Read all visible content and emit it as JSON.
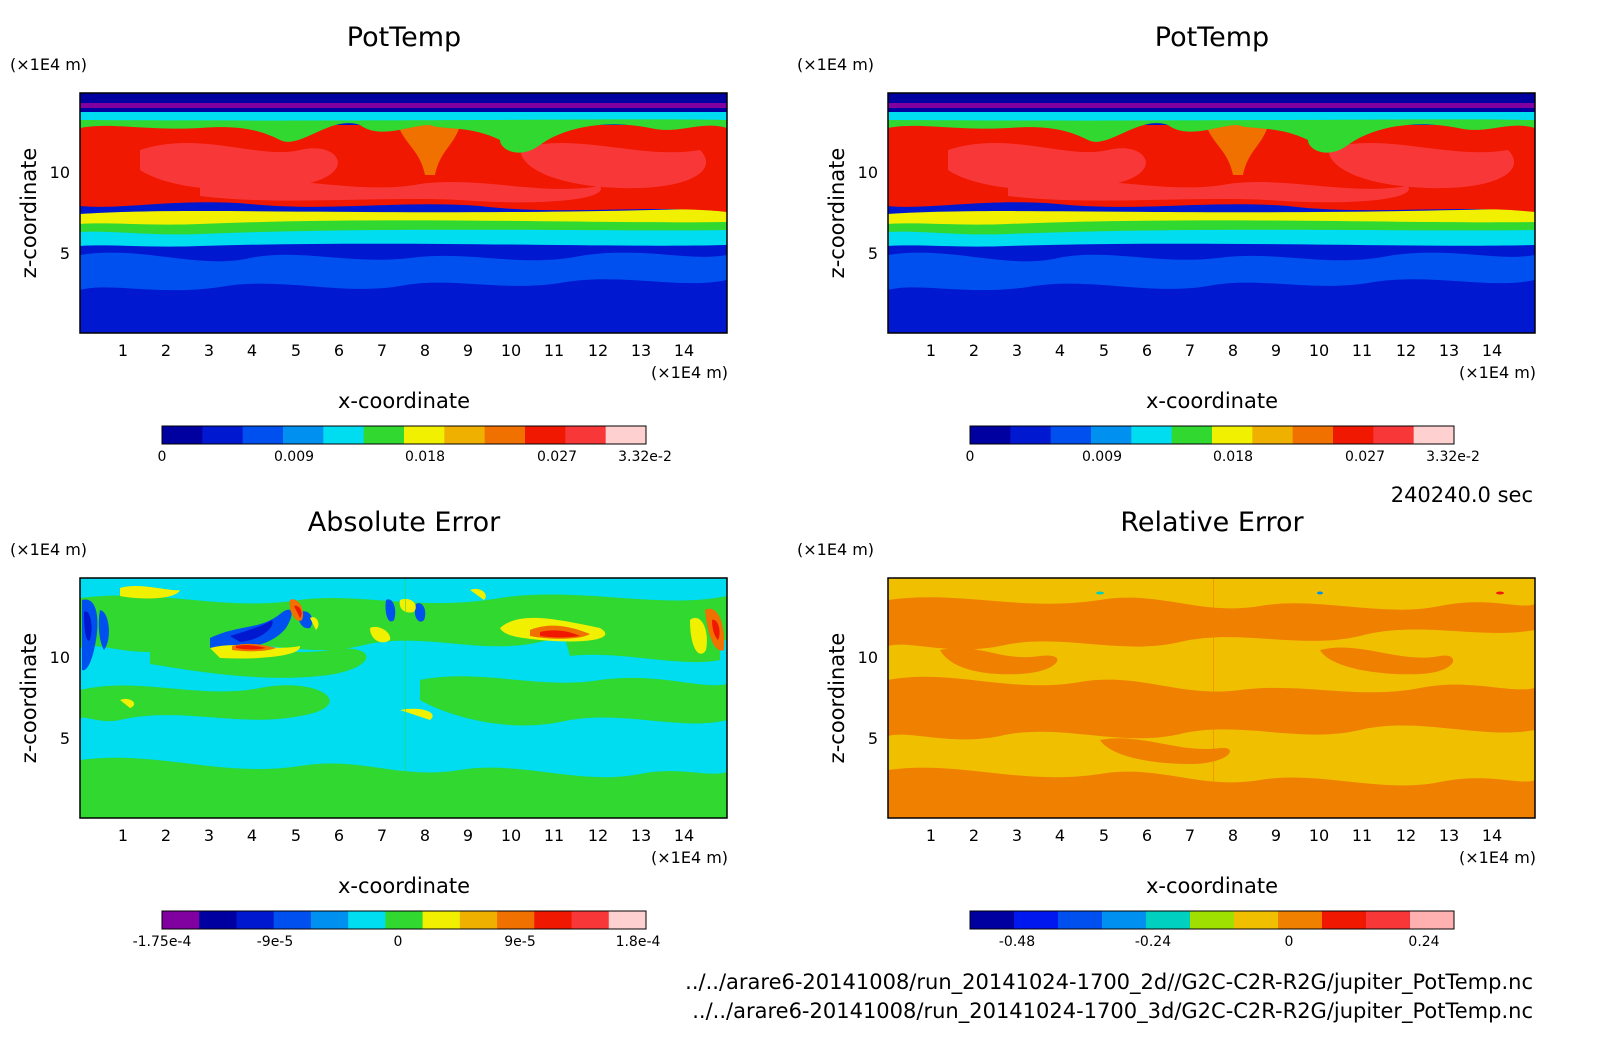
{
  "chart_data": [
    {
      "type": "heatmap",
      "title": "PotTemp",
      "xlabel": "x-coordinate",
      "ylabel": "z-coordinate",
      "x_unit": "(×1E4 m)",
      "y_unit": "(×1E4 m)",
      "xlim": [
        0,
        15
      ],
      "ylim": [
        0,
        15
      ],
      "x_ticks": [
        "1",
        "2",
        "3",
        "4",
        "5",
        "6",
        "7",
        "8",
        "9",
        "10",
        "11",
        "12",
        "13",
        "14"
      ],
      "y_ticks": [
        "5",
        "10"
      ],
      "colorbar": {
        "colors": [
          "#0000a0",
          "#0018d0",
          "#0050f0",
          "#0090f0",
          "#00dcf0",
          "#30d830",
          "#f0f000",
          "#f0b000",
          "#f07000",
          "#f01800",
          "#f83838",
          "#ffd0d0"
        ],
        "tick_labels": [
          "0",
          "0.009",
          "0.018",
          "0.027",
          "3.32e-2"
        ]
      },
      "fields": {
        "upper_band": 0.027,
        "warm_layer": 0.027,
        "transition": 0.018,
        "lower_layer": 0.003
      }
    },
    {
      "type": "heatmap",
      "title": "PotTemp",
      "xlabel": "x-coordinate",
      "ylabel": "z-coordinate",
      "x_unit": "(×1E4 m)",
      "y_unit": "(×1E4 m)",
      "xlim": [
        0,
        15
      ],
      "ylim": [
        0,
        15
      ],
      "x_ticks": [
        "1",
        "2",
        "3",
        "4",
        "5",
        "6",
        "7",
        "8",
        "9",
        "10",
        "11",
        "12",
        "13",
        "14"
      ],
      "y_ticks": [
        "5",
        "10"
      ],
      "colorbar": {
        "colors": [
          "#0000a0",
          "#0018d0",
          "#0050f0",
          "#0090f0",
          "#00dcf0",
          "#30d830",
          "#f0f000",
          "#f0b000",
          "#f07000",
          "#f01800",
          "#f83838",
          "#ffd0d0"
        ],
        "tick_labels": [
          "0",
          "0.009",
          "0.018",
          "0.027",
          "3.32e-2"
        ]
      }
    },
    {
      "type": "heatmap",
      "title": "Absolute Error",
      "xlabel": "x-coordinate",
      "ylabel": "z-coordinate",
      "x_unit": "(×1E4 m)",
      "y_unit": "(×1E4 m)",
      "xlim": [
        0,
        15
      ],
      "ylim": [
        0,
        15
      ],
      "x_ticks": [
        "1",
        "2",
        "3",
        "4",
        "5",
        "6",
        "7",
        "8",
        "9",
        "10",
        "11",
        "12",
        "13",
        "14"
      ],
      "y_ticks": [
        "5",
        "10"
      ],
      "colorbar": {
        "colors": [
          "#8000a0",
          "#0000a0",
          "#0018d0",
          "#0050f0",
          "#0090f0",
          "#00dcf0",
          "#30d830",
          "#f0f000",
          "#f0b000",
          "#f07000",
          "#f01800",
          "#f83838",
          "#ffd0d0"
        ],
        "tick_labels": [
          "-1.75e-4",
          "-9e-5",
          "0",
          "9e-5",
          "1.8e-4"
        ]
      }
    },
    {
      "type": "heatmap",
      "title": "Relative Error",
      "xlabel": "x-coordinate",
      "ylabel": "z-coordinate",
      "x_unit": "(×1E4 m)",
      "y_unit": "(×1E4 m)",
      "xlim": [
        0,
        15
      ],
      "ylim": [
        0,
        15
      ],
      "x_ticks": [
        "1",
        "2",
        "3",
        "4",
        "5",
        "6",
        "7",
        "8",
        "9",
        "10",
        "11",
        "12",
        "13",
        "14"
      ],
      "y_ticks": [
        "5",
        "10"
      ],
      "colorbar": {
        "colors": [
          "#0000a0",
          "#0018f0",
          "#0050f0",
          "#0090f0",
          "#00d0c0",
          "#a0e000",
          "#f0c000",
          "#f08000",
          "#f01800",
          "#f83838",
          "#ffb0b0"
        ],
        "tick_labels": [
          "-0.48",
          "-0.24",
          "0",
          "0.24"
        ]
      }
    }
  ],
  "time_label": "240240.0 sec",
  "files": [
    "../../arare6-20141008/run_20141024-1700_2d//G2C-C2R-R2G/jupiter_PotTemp.nc",
    "../../arare6-20141008/run_20141024-1700_3d/G2C-C2R-R2G/jupiter_PotTemp.nc"
  ]
}
